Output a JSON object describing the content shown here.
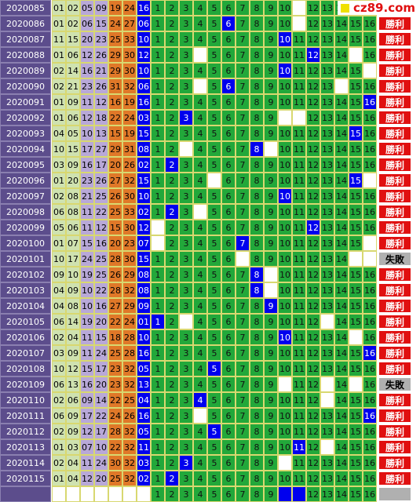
{
  "logo": "cz89.com",
  "position_labels": [
    "1",
    "2",
    "3",
    "4",
    "5",
    "6",
    "7",
    "8",
    "9",
    "10",
    "11",
    "12",
    "13",
    "14",
    "15",
    "16"
  ],
  "rows": [
    {
      "period": "2020085",
      "reds": [
        "01",
        "02",
        "05",
        "09",
        "19",
        "24"
      ],
      "blue": "16",
      "blanks": [
        11
      ],
      "result": "勝利",
      "win": true
    },
    {
      "period": "2020086",
      "reds": [
        "01",
        "02",
        "06",
        "15",
        "24",
        "27"
      ],
      "blue": "06",
      "blanks": [
        11
      ],
      "result": "勝利",
      "win": true
    },
    {
      "period": "2020087",
      "reds": [
        "11",
        "15",
        "20",
        "23",
        "25",
        "33"
      ],
      "blue": "10",
      "blanks": [],
      "result": "勝利",
      "win": true
    },
    {
      "period": "2020088",
      "reds": [
        "01",
        "06",
        "12",
        "26",
        "29",
        "30"
      ],
      "blue": "12",
      "blanks": [
        4,
        15
      ],
      "result": "勝利",
      "win": true
    },
    {
      "period": "2020089",
      "reds": [
        "02",
        "14",
        "16",
        "21",
        "29",
        "30"
      ],
      "blue": "10",
      "blanks": [
        16
      ],
      "result": "勝利",
      "win": true
    },
    {
      "period": "2020090",
      "reds": [
        "02",
        "21",
        "23",
        "26",
        "31",
        "32"
      ],
      "blue": "06",
      "blanks": [
        4,
        14
      ],
      "result": "勝利",
      "win": true
    },
    {
      "period": "2020091",
      "reds": [
        "01",
        "09",
        "11",
        "12",
        "16",
        "19"
      ],
      "blue": "16",
      "blanks": [],
      "result": "勝利",
      "win": true
    },
    {
      "period": "2020092",
      "reds": [
        "01",
        "06",
        "12",
        "18",
        "22",
        "24"
      ],
      "blue": "03",
      "blanks": [
        10,
        11
      ],
      "result": "勝利",
      "win": true
    },
    {
      "period": "2020093",
      "reds": [
        "04",
        "05",
        "10",
        "13",
        "15",
        "19"
      ],
      "blue": "15",
      "blanks": [],
      "result": "勝利",
      "win": true
    },
    {
      "period": "2020094",
      "reds": [
        "10",
        "15",
        "17",
        "27",
        "29",
        "31"
      ],
      "blue": "08",
      "blanks": [
        3,
        9
      ],
      "result": "勝利",
      "win": true
    },
    {
      "period": "2020095",
      "reds": [
        "03",
        "09",
        "16",
        "17",
        "20",
        "26"
      ],
      "blue": "02",
      "blanks": [],
      "result": "勝利",
      "win": true
    },
    {
      "period": "2020096",
      "reds": [
        "01",
        "20",
        "23",
        "26",
        "27",
        "32"
      ],
      "blue": "15",
      "blanks": [
        5,
        16
      ],
      "result": "勝利",
      "win": true
    },
    {
      "period": "2020097",
      "reds": [
        "02",
        "08",
        "21",
        "25",
        "26",
        "30"
      ],
      "blue": "10",
      "blanks": [],
      "result": "勝利",
      "win": true
    },
    {
      "period": "2020098",
      "reds": [
        "06",
        "08",
        "11",
        "22",
        "25",
        "33"
      ],
      "blue": "02",
      "blanks": [
        4
      ],
      "result": "勝利",
      "win": true
    },
    {
      "period": "2020099",
      "reds": [
        "05",
        "06",
        "11",
        "12",
        "15",
        "30"
      ],
      "blue": "12",
      "blanks": [
        1
      ],
      "result": "勝利",
      "win": true
    },
    {
      "period": "2020100",
      "reds": [
        "01",
        "07",
        "15",
        "16",
        "20",
        "23"
      ],
      "blue": "07",
      "blanks": [
        1,
        16
      ],
      "result": "勝利",
      "win": true
    },
    {
      "period": "2020101",
      "reds": [
        "10",
        "17",
        "24",
        "25",
        "28",
        "30"
      ],
      "blue": "15",
      "blanks": [
        7,
        15,
        16
      ],
      "result": "失敗",
      "win": false
    },
    {
      "period": "2020102",
      "reds": [
        "09",
        "10",
        "19",
        "25",
        "26",
        "29"
      ],
      "blue": "08",
      "blanks": [
        9
      ],
      "result": "勝利",
      "win": true
    },
    {
      "period": "2020103",
      "reds": [
        "04",
        "09",
        "10",
        "22",
        "28",
        "32"
      ],
      "blue": "08",
      "blanks": [
        9
      ],
      "result": "勝利",
      "win": true
    },
    {
      "period": "2020104",
      "reds": [
        "04",
        "08",
        "10",
        "16",
        "27",
        "29"
      ],
      "blue": "09",
      "blanks": [],
      "result": "勝利",
      "win": true
    },
    {
      "period": "2020105",
      "reds": [
        "06",
        "14",
        "19",
        "20",
        "22",
        "24"
      ],
      "blue": "01",
      "blanks": [
        3,
        13
      ],
      "result": "勝利",
      "win": true
    },
    {
      "period": "2020106",
      "reds": [
        "02",
        "04",
        "11",
        "15",
        "18",
        "28"
      ],
      "blue": "10",
      "blanks": [
        15
      ],
      "result": "勝利",
      "win": true
    },
    {
      "period": "2020107",
      "reds": [
        "03",
        "09",
        "11",
        "24",
        "25",
        "28"
      ],
      "blue": "16",
      "blanks": [],
      "result": "勝利",
      "win": true
    },
    {
      "period": "2020108",
      "reds": [
        "10",
        "12",
        "15",
        "17",
        "23",
        "32"
      ],
      "blue": "05",
      "blanks": [],
      "result": "勝利",
      "win": true
    },
    {
      "period": "2020109",
      "reds": [
        "06",
        "13",
        "16",
        "20",
        "23",
        "32"
      ],
      "blue": "13",
      "blanks": [
        10,
        13,
        15
      ],
      "result": "失敗",
      "win": false
    },
    {
      "period": "2020110",
      "reds": [
        "02",
        "06",
        "09",
        "14",
        "22",
        "25"
      ],
      "blue": "04",
      "blanks": [
        13
      ],
      "result": "勝利",
      "win": true
    },
    {
      "period": "2020111",
      "reds": [
        "06",
        "09",
        "17",
        "22",
        "24",
        "26"
      ],
      "blue": "16",
      "blanks": [
        4
      ],
      "result": "勝利",
      "win": true
    },
    {
      "period": "2020112",
      "reds": [
        "02",
        "09",
        "12",
        "17",
        "28",
        "32"
      ],
      "blue": "05",
      "blanks": [],
      "result": "勝利",
      "win": true
    },
    {
      "period": "2020113",
      "reds": [
        "01",
        "03",
        "07",
        "10",
        "22",
        "32"
      ],
      "blue": "11",
      "blanks": [
        13
      ],
      "result": "勝利",
      "win": true
    },
    {
      "period": "2020114",
      "reds": [
        "02",
        "04",
        "11",
        "24",
        "30",
        "32"
      ],
      "blue": "03",
      "blanks": [
        10
      ],
      "result": "勝利",
      "win": true
    },
    {
      "period": "2020115",
      "reds": [
        "01",
        "04",
        "12",
        "20",
        "25",
        "32"
      ],
      "blue": "02",
      "blanks": [],
      "result": "勝利",
      "win": true
    }
  ],
  "footer": {
    "hits": [
      10,
      11
    ]
  }
}
